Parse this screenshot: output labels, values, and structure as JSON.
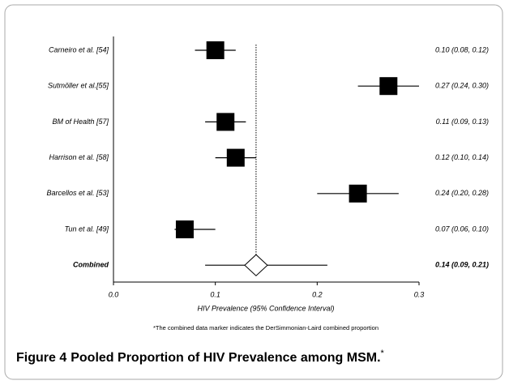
{
  "chart_data": {
    "type": "forest",
    "categories": [
      "Carneiro et al. [54]",
      "Sutmöller et al.[55]",
      "BM of Health [57]",
      "Harrison et al. [58]",
      "Barcellos et al. [53]",
      "Tun et al. [49]",
      "Combined"
    ],
    "values": [
      0.1,
      0.27,
      0.11,
      0.12,
      0.24,
      0.07,
      0.14
    ],
    "lower": [
      0.08,
      0.24,
      0.09,
      0.1,
      0.2,
      0.06,
      0.09
    ],
    "upper": [
      0.12,
      0.3,
      0.13,
      0.14,
      0.28,
      0.1,
      0.21
    ],
    "value_labels": [
      "0.10 (0.08, 0.12)",
      "0.27 (0.24, 0.30)",
      "0.11 (0.09, 0.13)",
      "0.12 (0.10, 0.14)",
      "0.24 (0.20, 0.28)",
      "0.07 (0.06, 0.10)",
      "0.14 (0.09, 0.21)"
    ],
    "xlabel": "HIV Prevalence (95% Confidence Interval)",
    "xlim": [
      0,
      0.3
    ],
    "xticks": [
      {
        "value": 0,
        "label": "0.0"
      },
      0.1,
      0.2,
      0.3
    ],
    "color": "#000000",
    "note": "*The combined data marker indicates the DerSimmonian-Laird combined proportion",
    "caption": {
      "label": "Figure 4",
      "text": "Pooled Proportion of HIV Prevalence among MSM.",
      "mark": "*"
    }
  }
}
